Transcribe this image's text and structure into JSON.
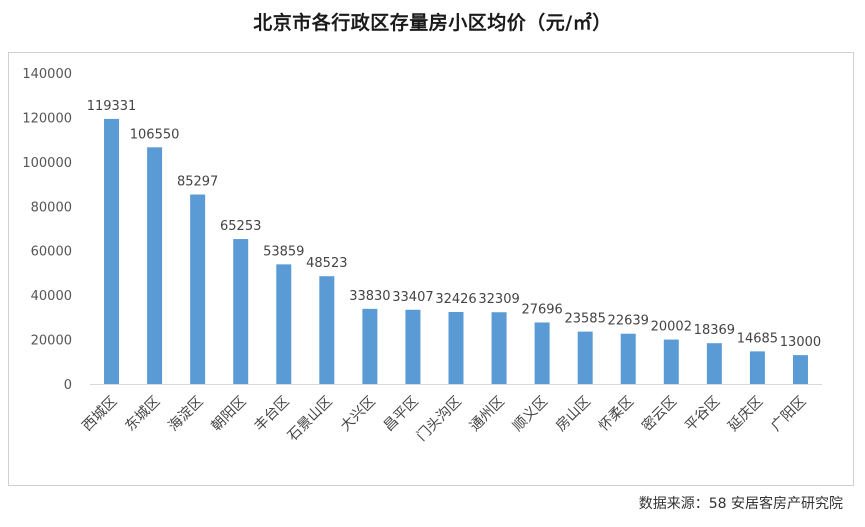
{
  "title": "北京市各行政区存量房小区均价（元/㎡）",
  "source": "数据来源：58 安居客房产研究院",
  "chart_data": {
    "type": "bar",
    "title": "北京市各行政区存量房小区均价（元/㎡）",
    "xlabel": "",
    "ylabel": "",
    "ylim": [
      0,
      140000
    ],
    "yticks": [
      0,
      20000,
      40000,
      60000,
      80000,
      100000,
      120000,
      140000
    ],
    "grid": false,
    "legend": "none",
    "bar_color": "#5b9bd5",
    "categories": [
      "西城区",
      "东城区",
      "海淀区",
      "朝阳区",
      "丰台区",
      "石景山区",
      "大兴区",
      "昌平区",
      "门头沟区",
      "通州区",
      "顺义区",
      "房山区",
      "怀柔区",
      "密云区",
      "平谷区",
      "延庆区",
      "广阳区"
    ],
    "values": [
      119331,
      106550,
      85297,
      65253,
      53859,
      48523,
      33830,
      33407,
      32426,
      32309,
      27696,
      23585,
      22639,
      20002,
      18369,
      14685,
      13000
    ]
  }
}
